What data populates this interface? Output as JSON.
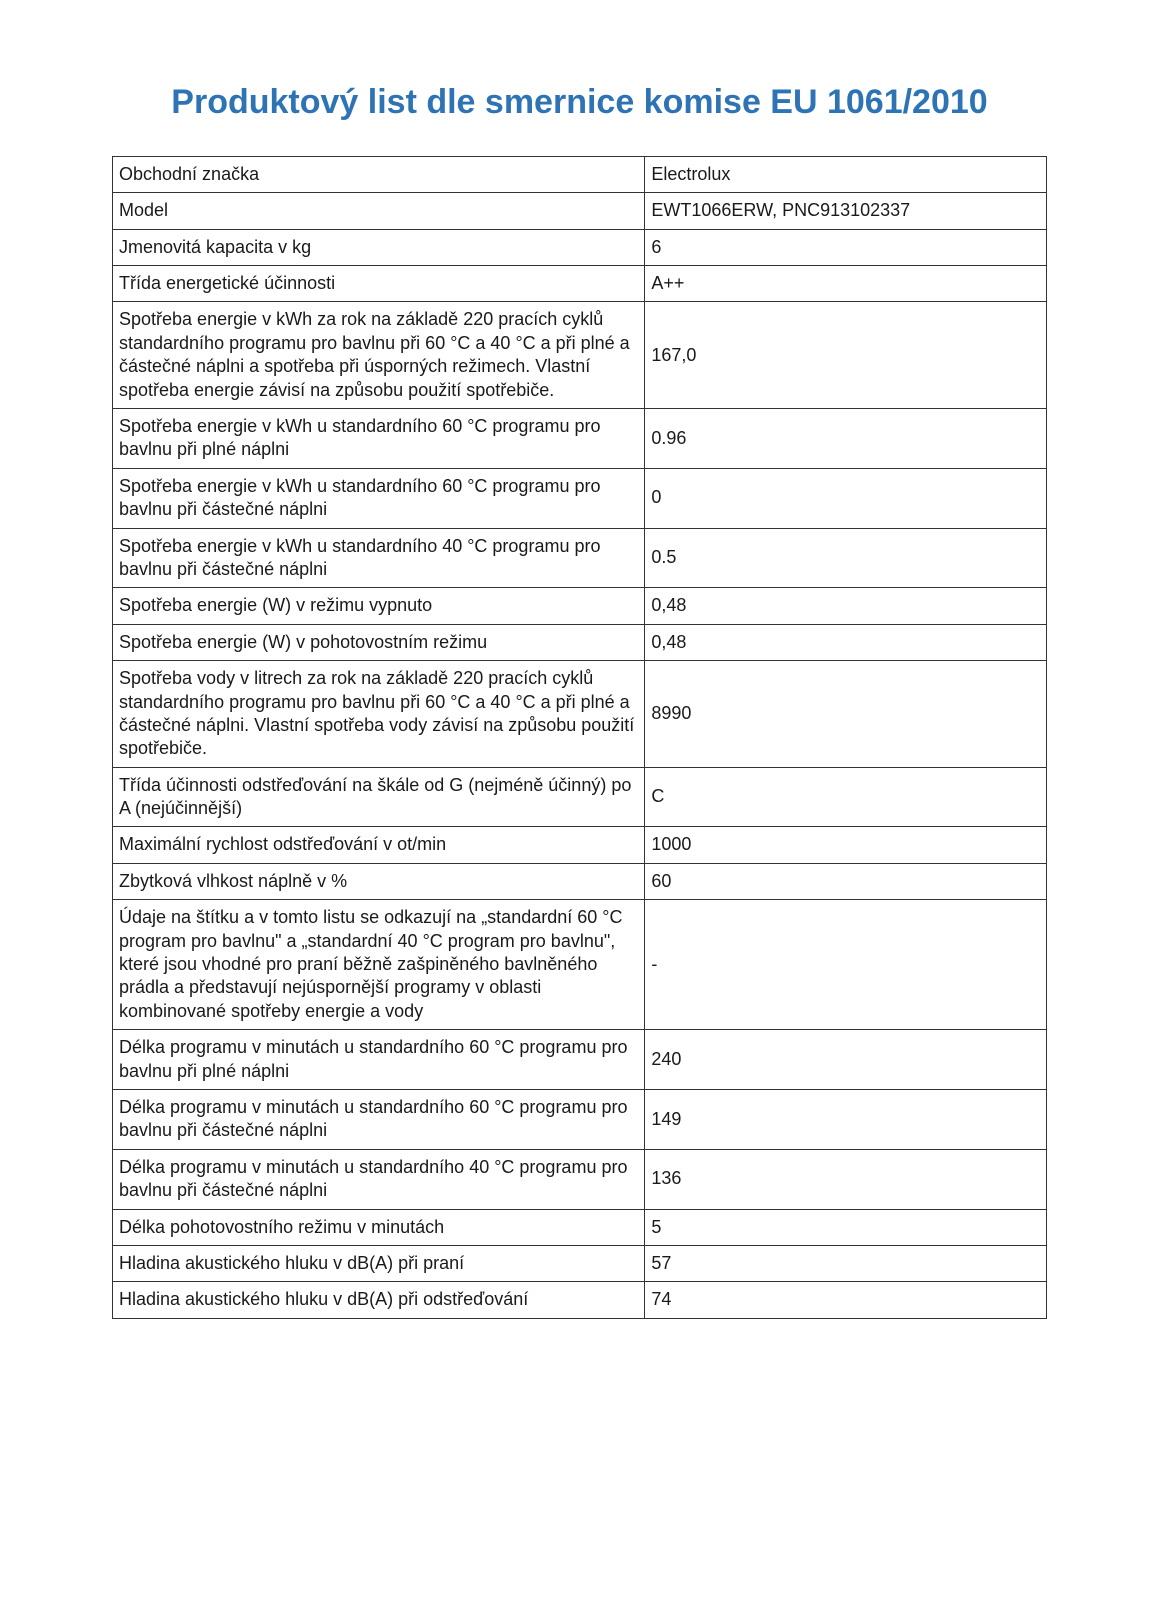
{
  "title": "Produktový list dle smernice komise EU 1061/2010",
  "colors": {
    "title_color": "#2E74B5",
    "text_color": "#1a1a1a",
    "border_color": "#333333",
    "background": "#ffffff"
  },
  "typography": {
    "title_fontsize": 34,
    "body_fontsize": 18,
    "font_family": "Verdana, Geneva, sans-serif"
  },
  "table": {
    "rows": [
      {
        "label": "Obchodní značka",
        "value": "Electrolux"
      },
      {
        "label": "Model",
        "value": "EWT1066ERW, PNC913102337"
      },
      {
        "label": "Jmenovitá kapacita v kg",
        "value": "6"
      },
      {
        "label": "Třída energetické účinnosti",
        "value": "A++"
      },
      {
        "label": "Spotřeba energie v kWh za rok na základě 220 pracích cyklů standardního programu pro bavlnu při 60 °C a 40 °C a při plné a částečné náplni a spotřeba při úsporných režimech. Vlastní spotřeba energie závisí na způsobu použití spotřebiče.",
        "value": "167,0"
      },
      {
        "label": "Spotřeba energie v kWh u standardního 60 °C programu pro bavlnu při plné náplni",
        "value": "0.96"
      },
      {
        "label": "Spotřeba energie v kWh u standardního 60 °C programu pro bavlnu při částečné náplni",
        "value": "0"
      },
      {
        "label": "Spotřeba energie v kWh u standardního 40 °C programu pro bavlnu při částečné náplni",
        "value": "0.5"
      },
      {
        "label": "Spotřeba energie (W) v režimu vypnuto",
        "value": "0,48"
      },
      {
        "label": "Spotřeba energie (W) v pohotovostním režimu",
        "value": "0,48"
      },
      {
        "label": "Spotřeba vody v litrech za rok na základě 220 pracích cyklů standardního programu pro bavlnu při 60 °C a 40 °C a při plné a částečné náplni. Vlastní spotřeba vody závisí na způsobu použití spotřebiče.",
        "value": "8990"
      },
      {
        "label": "Třída účinnosti odstřeďování na škále od G (nejméně účinný) po A (nejúčinnější)",
        "value": "C"
      },
      {
        "label": "Maximální rychlost odstřeďování v ot/min",
        "value": "1000"
      },
      {
        "label": "Zbytková vlhkost náplně v %",
        "value": "60"
      },
      {
        "label": "Údaje na štítku a v tomto listu se odkazují na „standardní 60 °C program pro bavlnu\" a „standardní 40 °C program pro bavlnu\", které jsou vhodné pro praní běžně zašpiněného bavlněného prádla a představují nejúspornější programy v oblasti kombinované spotřeby energie a vody",
        "value": "-"
      },
      {
        "label": "Délka programu v minutách u standardního 60 °C programu pro bavlnu při plné náplni",
        "value": "240"
      },
      {
        "label": "Délka programu v minutách u standardního 60 °C programu pro bavlnu při částečné náplni",
        "value": "149"
      },
      {
        "label": "Délka programu v minutách u standardního 40 °C programu pro bavlnu při částečné náplni",
        "value": "136"
      },
      {
        "label": "Délka pohotovostního režimu v minutách",
        "value": "5"
      },
      {
        "label": "Hladina akustického hluku v dB(A) při praní",
        "value": "57"
      },
      {
        "label": "Hladina akustického hluku v dB(A) při odstřeďování",
        "value": "74"
      }
    ]
  }
}
